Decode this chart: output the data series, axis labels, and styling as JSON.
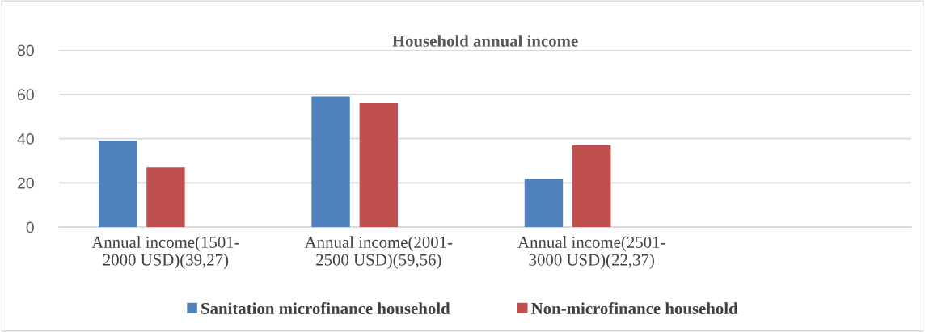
{
  "chart_data": {
    "type": "bar",
    "title": "Household annual income",
    "categories": [
      "Annual income(1501-\n2000 USD)(39,27)",
      "Annual income(2001-\n2500 USD)(59,56)",
      "Annual income(2501-\n3000 USD)(22,37)",
      null
    ],
    "series": [
      {
        "name": "Sanitation microfinance household",
        "color": "#4f81bd",
        "values": [
          39,
          59,
          22,
          null
        ]
      },
      {
        "name": "Non-microfinance household",
        "color": "#c0504d",
        "values": [
          27,
          56,
          37,
          null
        ]
      },
      {
        "values": [
          null,
          null,
          null,
          null
        ]
      }
    ],
    "ylim": [
      0,
      80
    ],
    "yticks": [
      0,
      20,
      40,
      60,
      80
    ],
    "grid": "y",
    "legend": "bottom"
  }
}
